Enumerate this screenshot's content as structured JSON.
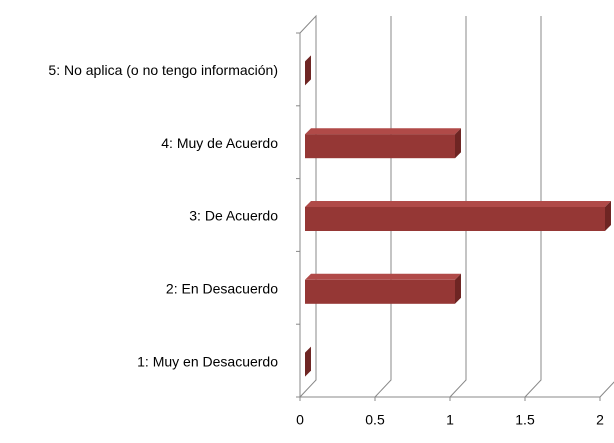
{
  "chart_data": {
    "type": "bar3d_horizontal",
    "categories": [
      "5: No aplica (o no tengo información)",
      "4: Muy de Acuerdo",
      "3: De Acuerdo",
      "2: En Desacuerdo",
      "1: Muy en Desacuerdo"
    ],
    "values": [
      0,
      1,
      2,
      1,
      0
    ],
    "color": "#953735",
    "xlim": [
      0,
      2
    ],
    "xticks": [
      0,
      0.5,
      1,
      1.5,
      2
    ],
    "grid": true
  }
}
